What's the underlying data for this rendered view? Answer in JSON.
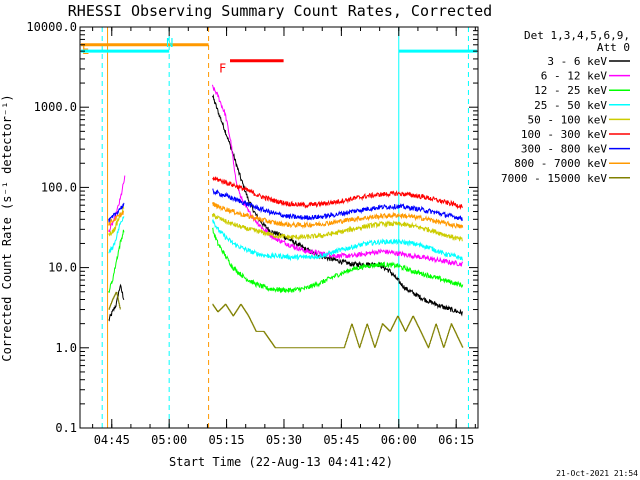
{
  "chart_data": {
    "type": "line",
    "title": "RHESSI Observing Summary Count Rates, Corrected",
    "xlabel": "Start Time (22-Aug-13 04:41:42)",
    "ylabel": "Corrected Count Rate (s⁻¹ detector⁻¹)",
    "y_scale": "log",
    "ylim": [
      0.1,
      10000
    ],
    "xlim_minutes_from_start": [
      -5,
      99
    ],
    "x_ticks": [
      {
        "label": "04:45",
        "t": 3.3
      },
      {
        "label": "05:00",
        "t": 18.3
      },
      {
        "label": "05:15",
        "t": 33.3
      },
      {
        "label": "05:30",
        "t": 48.3
      },
      {
        "label": "05:45",
        "t": 63.3
      },
      {
        "label": "06:00",
        "t": 78.3
      },
      {
        "label": "06:15",
        "t": 93.3
      }
    ],
    "y_ticks": [
      "0.1",
      "1.0",
      "10.0",
      "100.0",
      "1000.0",
      "10000.0"
    ],
    "legend_title": [
      "Det 1,3,4,5,6,9,",
      "Att 0"
    ],
    "legend_placement": "right",
    "series": [
      {
        "name": "3 - 6 keV",
        "color": "#000000",
        "points": [
          [
            2.5,
            2.2
          ],
          [
            3.5,
            2.8
          ],
          [
            4.5,
            3.5
          ],
          [
            5.5,
            6
          ],
          [
            6.5,
            4
          ],
          [
            29.6,
            1400
          ],
          [
            31,
            900
          ],
          [
            33,
            500
          ],
          [
            35,
            260
          ],
          [
            37,
            130
          ],
          [
            39,
            70
          ],
          [
            41,
            45
          ],
          [
            43,
            34
          ],
          [
            45,
            28
          ],
          [
            48,
            25
          ],
          [
            50,
            22
          ],
          [
            53,
            18
          ],
          [
            56,
            15
          ],
          [
            60,
            13
          ],
          [
            63,
            12
          ],
          [
            66,
            11
          ],
          [
            70,
            11
          ],
          [
            73,
            11
          ],
          [
            76,
            9
          ],
          [
            78,
            7
          ],
          [
            80,
            5.5
          ],
          [
            85,
            4
          ],
          [
            90,
            3.2
          ],
          [
            95,
            2.7
          ]
        ]
      },
      {
        "name": "6 - 12 keV",
        "color": "#ff00ff",
        "points": [
          [
            2.5,
            28
          ],
          [
            4,
            40
          ],
          [
            5.5,
            70
          ],
          [
            6.8,
            140
          ],
          [
            29.6,
            1800
          ],
          [
            31,
            1400
          ],
          [
            33,
            800
          ],
          [
            34.5,
            350
          ],
          [
            35.5,
            140
          ],
          [
            37,
            75
          ],
          [
            39,
            50
          ],
          [
            41,
            38
          ],
          [
            43,
            30
          ],
          [
            46,
            23
          ],
          [
            50,
            19
          ],
          [
            54,
            16
          ],
          [
            58,
            15
          ],
          [
            62,
            14
          ],
          [
            66,
            14
          ],
          [
            70,
            15
          ],
          [
            74,
            16
          ],
          [
            78,
            15
          ],
          [
            82,
            14
          ],
          [
            86,
            13
          ],
          [
            90,
            12
          ],
          [
            95,
            11
          ]
        ]
      },
      {
        "name": "12 - 25 keV",
        "color": "#00ff00",
        "points": [
          [
            2.5,
            5
          ],
          [
            3.5,
            7
          ],
          [
            4.5,
            12
          ],
          [
            5.5,
            20
          ],
          [
            6.5,
            30
          ],
          [
            29.6,
            30
          ],
          [
            31,
            20
          ],
          [
            33,
            14
          ],
          [
            35,
            10
          ],
          [
            38,
            7.5
          ],
          [
            41,
            6.2
          ],
          [
            44,
            5.5
          ],
          [
            47,
            5.3
          ],
          [
            50,
            5.2
          ],
          [
            54,
            5.5
          ],
          [
            58,
            6.5
          ],
          [
            62,
            8
          ],
          [
            66,
            9.5
          ],
          [
            70,
            10.5
          ],
          [
            74,
            11
          ],
          [
            78,
            10.5
          ],
          [
            82,
            9
          ],
          [
            86,
            8
          ],
          [
            90,
            7
          ],
          [
            95,
            6
          ]
        ]
      },
      {
        "name": "25 - 50 keV",
        "color": "#00ffff",
        "points": [
          [
            2.5,
            15
          ],
          [
            4,
            20
          ],
          [
            5.5,
            35
          ],
          [
            6.5,
            45
          ],
          [
            29.6,
            40
          ],
          [
            31,
            30
          ],
          [
            33,
            24
          ],
          [
            35,
            20
          ],
          [
            38,
            17
          ],
          [
            41,
            15
          ],
          [
            44,
            14
          ],
          [
            47,
            14
          ],
          [
            50,
            13.5
          ],
          [
            54,
            13.5
          ],
          [
            58,
            14
          ],
          [
            62,
            16
          ],
          [
            66,
            18
          ],
          [
            70,
            20
          ],
          [
            74,
            21
          ],
          [
            78,
            21
          ],
          [
            82,
            20
          ],
          [
            86,
            18
          ],
          [
            90,
            15
          ],
          [
            95,
            13
          ]
        ]
      },
      {
        "name": "50 - 100 keV",
        "color": "#cccc00",
        "points": [
          [
            2.5,
            25
          ],
          [
            4,
            30
          ],
          [
            5.5,
            45
          ],
          [
            6.5,
            55
          ],
          [
            29.6,
            45
          ],
          [
            31,
            42
          ],
          [
            34,
            36
          ],
          [
            38,
            31
          ],
          [
            42,
            28
          ],
          [
            46,
            25
          ],
          [
            50,
            24
          ],
          [
            54,
            24
          ],
          [
            58,
            25
          ],
          [
            62,
            27
          ],
          [
            66,
            30
          ],
          [
            70,
            33
          ],
          [
            74,
            35
          ],
          [
            78,
            35
          ],
          [
            82,
            33
          ],
          [
            86,
            30
          ],
          [
            90,
            26
          ],
          [
            95,
            22
          ]
        ]
      },
      {
        "name": "100 - 300 keV",
        "color": "#ff0000",
        "points": [
          [
            29.6,
            130
          ],
          [
            31,
            125
          ],
          [
            34,
            112
          ],
          [
            38,
            95
          ],
          [
            42,
            78
          ],
          [
            46,
            68
          ],
          [
            50,
            62
          ],
          [
            54,
            60
          ],
          [
            58,
            62
          ],
          [
            62,
            66
          ],
          [
            66,
            72
          ],
          [
            70,
            78
          ],
          [
            74,
            82
          ],
          [
            78,
            84
          ],
          [
            82,
            80
          ],
          [
            86,
            74
          ],
          [
            90,
            66
          ],
          [
            95,
            58
          ]
        ]
      },
      {
        "name": "300 - 800 keV",
        "color": "#0000ff",
        "points": [
          [
            2.5,
            38
          ],
          [
            4,
            45
          ],
          [
            5.5,
            55
          ],
          [
            6.5,
            60
          ],
          [
            29.6,
            90
          ],
          [
            31,
            85
          ],
          [
            34,
            76
          ],
          [
            38,
            64
          ],
          [
            42,
            54
          ],
          [
            46,
            47
          ],
          [
            50,
            43
          ],
          [
            54,
            42
          ],
          [
            58,
            43
          ],
          [
            62,
            46
          ],
          [
            66,
            50
          ],
          [
            70,
            54
          ],
          [
            74,
            57
          ],
          [
            78,
            58
          ],
          [
            82,
            55
          ],
          [
            86,
            51
          ],
          [
            90,
            46
          ],
          [
            95,
            41
          ]
        ]
      },
      {
        "name": "800 - 7000 keV",
        "color": "#ff9900",
        "points": [
          [
            2.5,
            35
          ],
          [
            4,
            40
          ],
          [
            5.5,
            45
          ],
          [
            6.5,
            50
          ],
          [
            29.6,
            62
          ],
          [
            31,
            58
          ],
          [
            34,
            52
          ],
          [
            38,
            45
          ],
          [
            42,
            40
          ],
          [
            46,
            36
          ],
          [
            50,
            34
          ],
          [
            54,
            34
          ],
          [
            58,
            35
          ],
          [
            62,
            37
          ],
          [
            66,
            40
          ],
          [
            70,
            42
          ],
          [
            74,
            44
          ],
          [
            78,
            45
          ],
          [
            82,
            43
          ],
          [
            86,
            40
          ],
          [
            90,
            36
          ],
          [
            95,
            32
          ]
        ]
      },
      {
        "name": "7000 - 15000 keV",
        "color": "#808000",
        "points": [
          [
            2.5,
            3
          ],
          [
            3.5,
            4
          ],
          [
            4.5,
            5
          ],
          [
            5.5,
            3
          ],
          [
            29.6,
            3.5
          ],
          [
            31,
            2.8
          ],
          [
            33,
            3.5
          ],
          [
            35,
            2.5
          ],
          [
            37,
            3.5
          ],
          [
            39,
            2.5
          ],
          [
            41,
            1.6
          ],
          [
            43,
            1.6
          ],
          [
            46,
            1
          ],
          [
            50,
            1
          ],
          [
            54,
            1
          ],
          [
            58,
            1
          ],
          [
            62,
            1
          ],
          [
            64,
            1
          ],
          [
            66,
            2
          ],
          [
            68,
            1
          ],
          [
            70,
            2
          ],
          [
            72,
            1
          ],
          [
            74,
            2
          ],
          [
            76,
            1.6
          ],
          [
            78,
            2.5
          ],
          [
            80,
            1.6
          ],
          [
            82,
            2.5
          ],
          [
            84,
            1.6
          ],
          [
            86,
            1
          ],
          [
            88,
            2
          ],
          [
            90,
            1
          ],
          [
            92,
            2
          ],
          [
            95,
            1
          ]
        ]
      }
    ],
    "bars": [
      {
        "label": "E",
        "color": "#ff9900",
        "from": -5,
        "to": 28.6,
        "level": 6000
      },
      {
        "label": "N",
        "color": "#00ffff",
        "from": -5,
        "to": 18.3,
        "level": 5000
      },
      {
        "label": "N",
        "color": "#00ffff",
        "from": 78.3,
        "to": 99,
        "level": 5000
      },
      {
        "label": "F",
        "color": "#ff0000",
        "from": 34.2,
        "to": 48.2,
        "level": 3800
      }
    ],
    "vlines": [
      {
        "t": 0.8,
        "color": "#00ffff",
        "style": "dash"
      },
      {
        "t": 2.2,
        "color": "#ff9900",
        "style": "solid"
      },
      {
        "t": 18.3,
        "color": "#00ffff",
        "style": "dash"
      },
      {
        "t": 28.6,
        "color": "#ff9900",
        "style": "dash"
      },
      {
        "t": 78.3,
        "color": "#00ffff",
        "style": "solid"
      },
      {
        "t": 96.5,
        "color": "#00ffff",
        "style": "dash"
      }
    ],
    "timestamp": "21-Oct-2021 21:54"
  }
}
